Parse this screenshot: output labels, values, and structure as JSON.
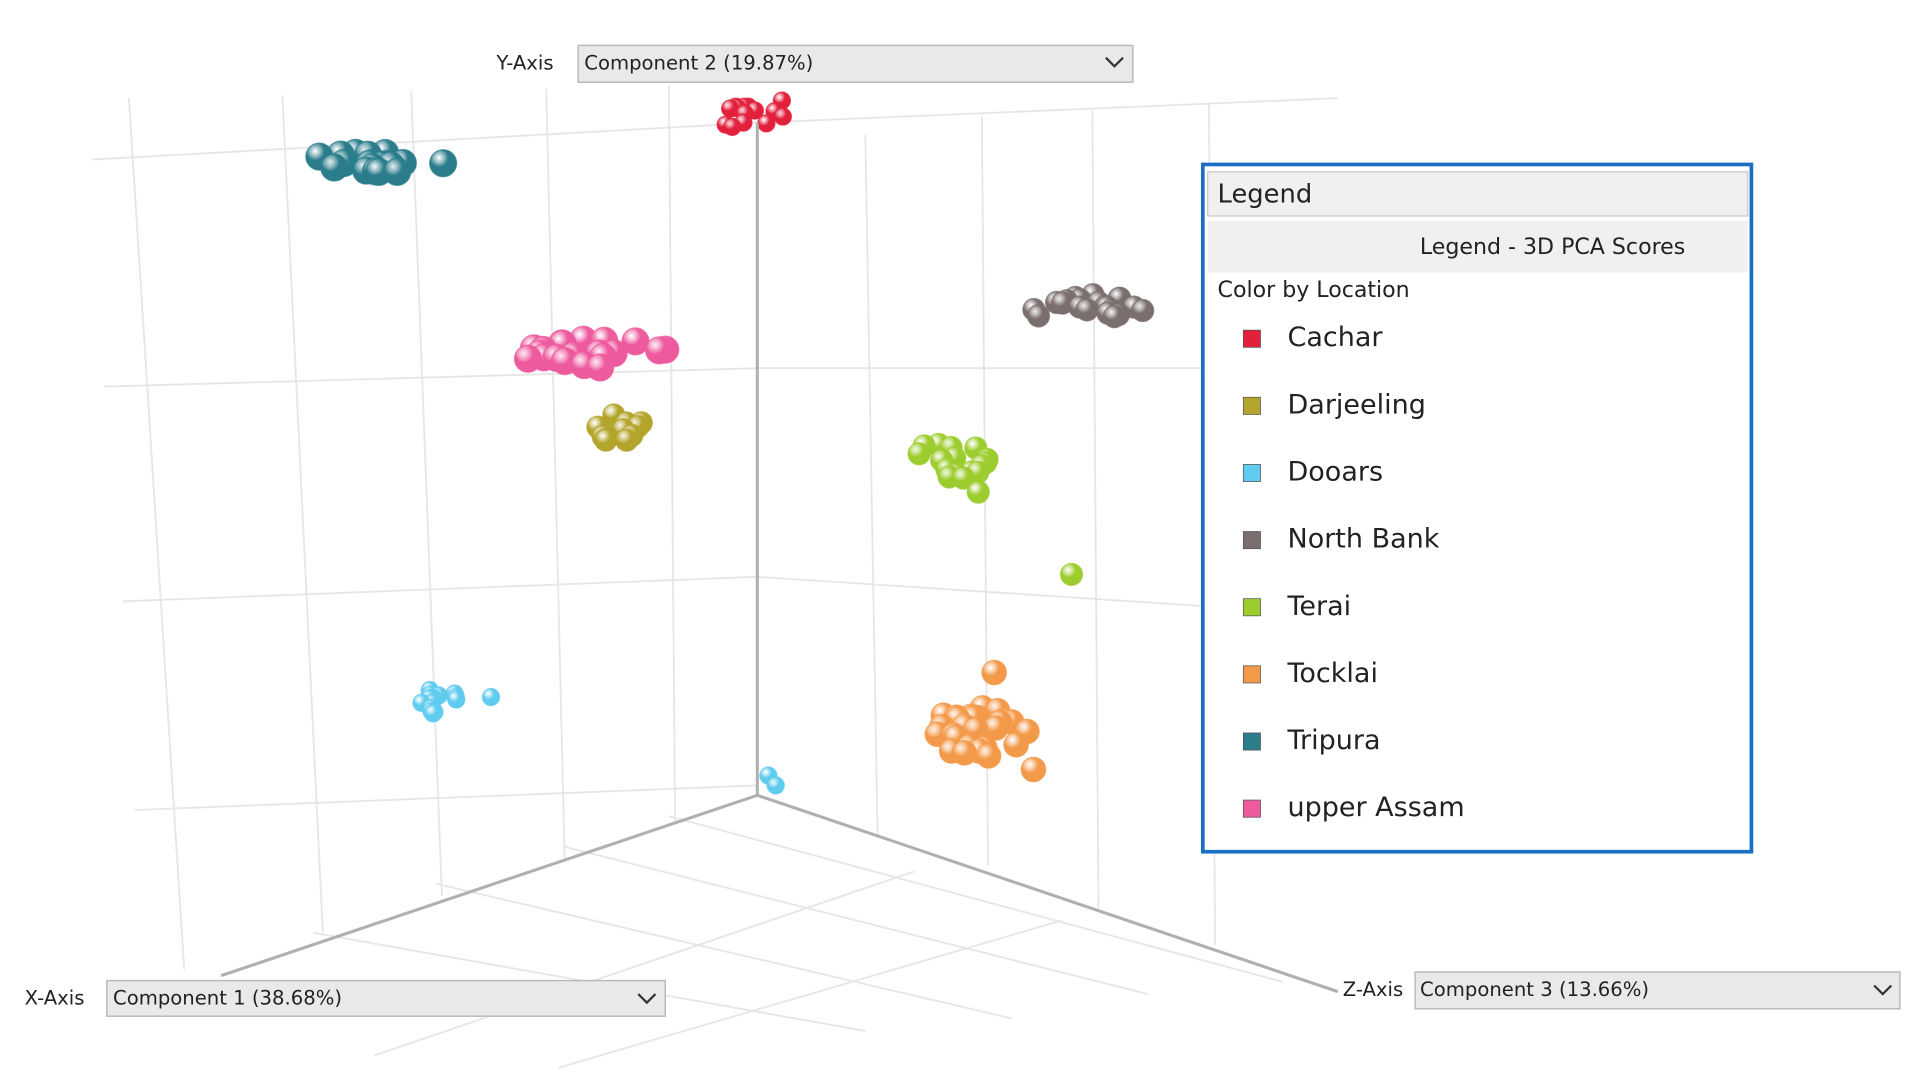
{
  "y_axis": {
    "label": "Y-Axis",
    "selection": "Component 2 (19.87%)"
  },
  "x_axis": {
    "label": "X-Axis",
    "selection": "Component 1 (38.68%)"
  },
  "z_axis": {
    "label": "Z-Axis",
    "selection": "Component 3 (13.66%)"
  },
  "legend": {
    "title": "Legend",
    "subtitle": "Legend - 3D PCA Scores",
    "group_label": "Color by Location",
    "items": [
      {
        "name": "Cachar",
        "color": "#e3203c"
      },
      {
        "name": "Darjeeling",
        "color": "#b3a52c"
      },
      {
        "name": "Dooars",
        "color": "#5fcbee"
      },
      {
        "name": "North Bank",
        "color": "#7a6e6e"
      },
      {
        "name": "Terai",
        "color": "#9dcc2e"
      },
      {
        "name": "Tocklai",
        "color": "#f39a4a"
      },
      {
        "name": "Tripura",
        "color": "#2b7d8c"
      },
      {
        "name": "upper Assam",
        "color": "#ee5a9e"
      }
    ]
  }
}
